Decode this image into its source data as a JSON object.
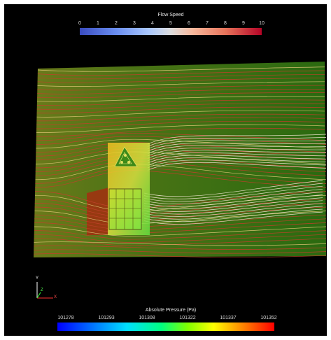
{
  "speed_legend": {
    "title": "Flow Speed",
    "ticks": [
      "0",
      "1",
      "2",
      "3",
      "4",
      "5",
      "6",
      "7",
      "8",
      "9",
      "10"
    ],
    "colormap": "cool-to-warm",
    "color_low": "#3a4cc0",
    "color_high": "#b40426"
  },
  "pressure_legend": {
    "title": "Absolute Pressure (Pa)",
    "ticks": [
      "101278",
      "101293",
      "101308",
      "101322",
      "101337",
      "101352"
    ],
    "colormap": "rainbow",
    "color_low": "#0000ff",
    "color_high": "#ff0000"
  },
  "orientation_axes": {
    "x_label": "X",
    "y_label": "Y",
    "z_label": "Z",
    "x_color": "#ff3030",
    "y_color": "#ffffff",
    "z_color": "#30ff30"
  },
  "scene": {
    "background": "#000000",
    "ground_color": "#2f6a10",
    "streamline_colors": [
      "#c0402a",
      "#d8c070",
      "#e8e0c8"
    ],
    "obstacles": [
      "triangular-building",
      "square-building"
    ]
  }
}
